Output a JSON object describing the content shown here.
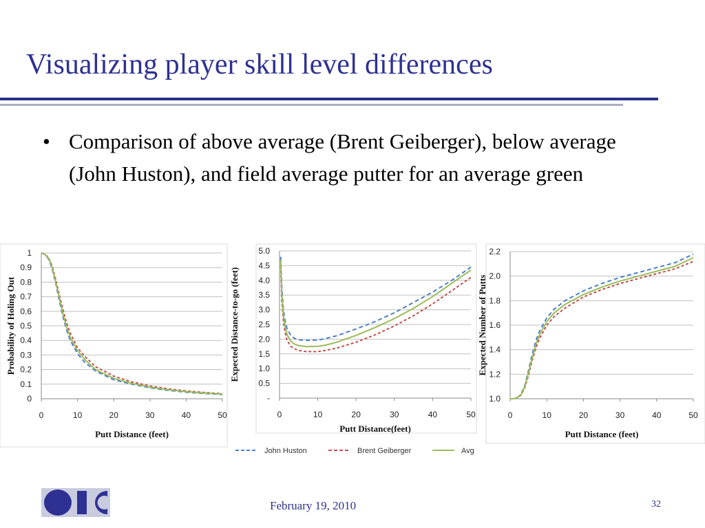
{
  "slide": {
    "title": "Visualizing player skill level differences",
    "bullet": "Comparison of above average (Brent Geiberger), below average (John Huston), and field average putter for an average green",
    "footer_date": "February 19, 2010",
    "page_number": "32"
  },
  "colors": {
    "title": "#2e3192",
    "john": "#4a7ec8",
    "brent": "#c0504d",
    "avg": "#9bbb59"
  },
  "legend": [
    {
      "name": "John Huston",
      "color": "#4a7ec8",
      "dash": "dashed"
    },
    {
      "name": "Brent Geiberger",
      "color": "#c0504d",
      "dash": "dashed"
    },
    {
      "name": "Avg",
      "color": "#9bbb59",
      "dash": "solid"
    }
  ],
  "chart_data": [
    {
      "type": "line",
      "xlabel": "Putt Distance (feet)",
      "ylabel": "Probability of Holing Out",
      "xlim": [
        0,
        50
      ],
      "ylim": [
        0,
        1
      ],
      "x_ticks": [
        "0",
        "10",
        "20",
        "30",
        "40",
        "50"
      ],
      "y_ticks": [
        "0",
        "0.1",
        "0.2",
        "0.3",
        "0.4",
        "0.5",
        "0.6",
        "0.7",
        "0.8",
        "0.9",
        "1"
      ],
      "grid": true,
      "x": [
        0,
        1,
        2,
        3,
        4,
        5,
        6,
        7,
        8,
        10,
        12,
        15,
        20,
        25,
        30,
        35,
        40,
        45,
        50
      ],
      "series": [
        {
          "name": "John Huston",
          "values": [
            1.0,
            0.99,
            0.96,
            0.89,
            0.79,
            0.67,
            0.56,
            0.47,
            0.4,
            0.31,
            0.25,
            0.19,
            0.13,
            0.1,
            0.075,
            0.058,
            0.045,
            0.036,
            0.029
          ]
        },
        {
          "name": "Brent Geiberger",
          "values": [
            1.0,
            0.99,
            0.97,
            0.91,
            0.82,
            0.71,
            0.61,
            0.52,
            0.45,
            0.35,
            0.29,
            0.22,
            0.155,
            0.115,
            0.088,
            0.068,
            0.054,
            0.043,
            0.035
          ]
        },
        {
          "name": "Avg",
          "values": [
            1.0,
            0.99,
            0.965,
            0.9,
            0.8,
            0.69,
            0.58,
            0.49,
            0.42,
            0.33,
            0.27,
            0.2,
            0.14,
            0.105,
            0.08,
            0.062,
            0.049,
            0.039,
            0.032
          ]
        }
      ]
    },
    {
      "type": "line",
      "xlabel": "Putt Distance(feet)",
      "ylabel": "Expected Distance-to-go (feet)",
      "xlim": [
        0,
        50
      ],
      "ylim": [
        0,
        5
      ],
      "x_ticks": [
        "0",
        "10",
        "20",
        "30",
        "40",
        "50"
      ],
      "y_ticks": [
        "-",
        "0.5",
        "1.0",
        "1.5",
        "2.0",
        "2.5",
        "3.0",
        "3.5",
        "4.0",
        "4.5",
        "5.0"
      ],
      "grid": true,
      "x": [
        0.3,
        0.6,
        1,
        1.5,
        2,
        3,
        4,
        5,
        7,
        10,
        12,
        15,
        20,
        25,
        30,
        35,
        40,
        45,
        50
      ],
      "series": [
        {
          "name": "John Huston",
          "values": [
            4.8,
            3.8,
            3.0,
            2.6,
            2.35,
            2.12,
            2.02,
            1.98,
            1.96,
            1.97,
            2.02,
            2.12,
            2.35,
            2.6,
            2.9,
            3.25,
            3.6,
            4.0,
            4.45
          ]
        },
        {
          "name": "Brent Geiberger",
          "values": [
            4.5,
            3.3,
            2.6,
            2.2,
            1.95,
            1.75,
            1.67,
            1.62,
            1.58,
            1.58,
            1.62,
            1.7,
            1.9,
            2.15,
            2.45,
            2.8,
            3.2,
            3.65,
            4.1
          ]
        },
        {
          "name": "Avg",
          "values": [
            4.7,
            3.55,
            2.8,
            2.4,
            2.15,
            1.92,
            1.83,
            1.78,
            1.75,
            1.76,
            1.8,
            1.9,
            2.13,
            2.4,
            2.7,
            3.05,
            3.45,
            3.9,
            4.35
          ]
        }
      ]
    },
    {
      "type": "line",
      "xlabel": "Putt Distance (feet)",
      "ylabel": "Expected Number of Putts",
      "xlim": [
        0,
        50
      ],
      "ylim": [
        1.0,
        2.2
      ],
      "x_ticks": [
        "0",
        "10",
        "20",
        "30",
        "40",
        "50"
      ],
      "y_ticks": [
        "1.0",
        "1.2",
        "1.4",
        "1.6",
        "1.8",
        "2.0",
        "2.2"
      ],
      "grid": true,
      "x": [
        0,
        1,
        2,
        3,
        4,
        5,
        6,
        7,
        8,
        10,
        12,
        15,
        20,
        25,
        30,
        35,
        40,
        45,
        50
      ],
      "series": [
        {
          "name": "John Huston",
          "values": [
            1.0,
            1.0,
            1.01,
            1.04,
            1.11,
            1.23,
            1.36,
            1.47,
            1.55,
            1.66,
            1.73,
            1.8,
            1.88,
            1.94,
            1.99,
            2.03,
            2.07,
            2.11,
            2.18
          ]
        },
        {
          "name": "Brent Geiberger",
          "values": [
            1.0,
            1.0,
            1.01,
            1.03,
            1.09,
            1.19,
            1.31,
            1.41,
            1.49,
            1.6,
            1.67,
            1.74,
            1.83,
            1.89,
            1.94,
            1.98,
            2.02,
            2.06,
            2.12
          ]
        },
        {
          "name": "Avg",
          "values": [
            1.0,
            1.0,
            1.01,
            1.035,
            1.1,
            1.21,
            1.33,
            1.44,
            1.52,
            1.63,
            1.7,
            1.77,
            1.85,
            1.91,
            1.96,
            2.0,
            2.04,
            2.08,
            2.15
          ]
        }
      ]
    }
  ]
}
